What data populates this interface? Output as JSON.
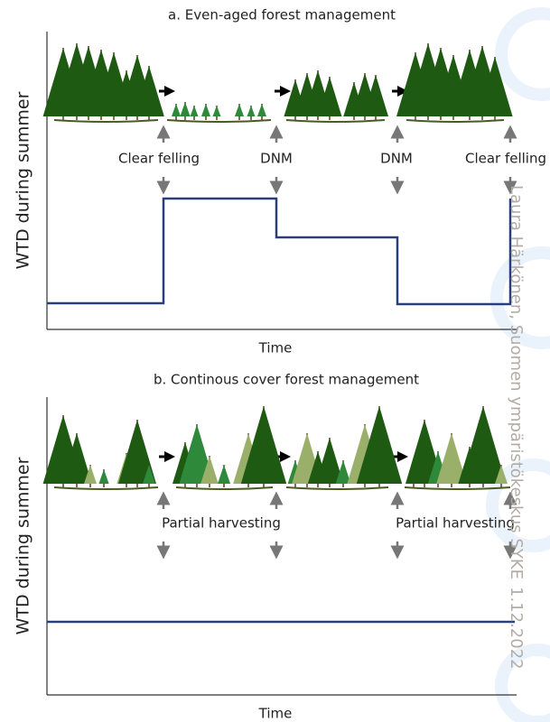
{
  "panels": [
    {
      "title": "a. Even-aged forest management",
      "y_label": "WTD during summer",
      "x_label": "Time",
      "events": [
        "Clear felling",
        "DNM",
        "DNM",
        "Clear felling"
      ]
    },
    {
      "title": "b. Continous cover forest management",
      "y_label": "WTD during summer",
      "x_label": "Time",
      "events": [
        "Partial harvesting",
        "Partial harvesting"
      ]
    }
  ],
  "watermark": {
    "author": "Laura Härkönen, Suomen ympäristökeskus SYKE",
    "date": "1.12.2022"
  }
}
